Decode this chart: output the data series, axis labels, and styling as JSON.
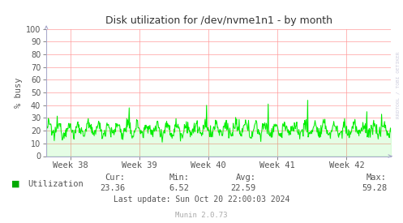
{
  "title": "Disk utilization for /dev/nvme1n1 - by month",
  "ylabel": "% busy",
  "ylim": [
    0,
    100
  ],
  "yticks": [
    0,
    10,
    20,
    30,
    40,
    50,
    60,
    70,
    80,
    90,
    100
  ],
  "week_labels": [
    "Week 38",
    "Week 39",
    "Week 40",
    "Week 41",
    "Week 42"
  ],
  "legend_label": "Utilization",
  "cur": "23.36",
  "min": "6.52",
  "avg": "22.59",
  "max": "59.28",
  "last_update": "Last update: Sun Oct 20 22:00:03 2024",
  "munin_version": "Munin 2.0.73",
  "watermark": "RRDTOOL / TOBI OETIKER",
  "line_color": "#00EE00",
  "fill_color": "#00EE00",
  "legend_color": "#00AA00",
  "bg_color": "#FFFFFF",
  "plot_bg_color": "#FFFFFF",
  "grid_color": "#FF9999",
  "title_color": "#333333",
  "border_color": "#AAAACC",
  "text_color": "#555555",
  "axes_color": "#AAAACC",
  "watermark_color": "#CCCCDD"
}
